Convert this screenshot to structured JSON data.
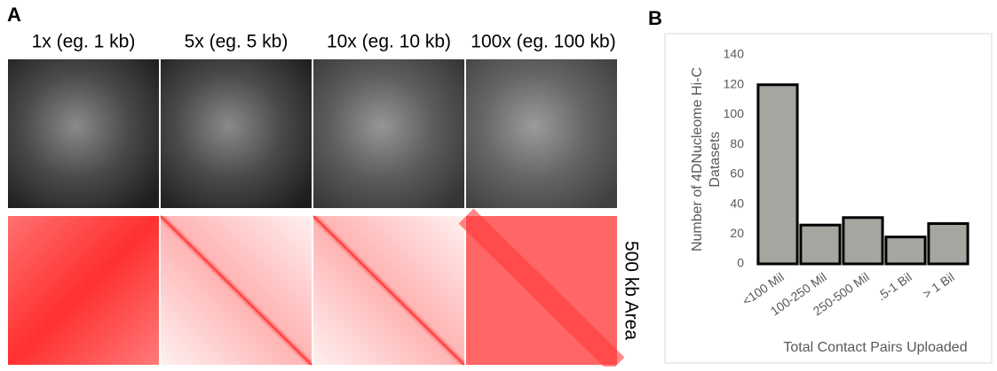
{
  "panel_a": {
    "label": "A",
    "columns": [
      "1x (eg. 1 kb)",
      "5x (eg. 5 kb)",
      "10x (eg. 10 kb)",
      "100x (eg. 100 kb)"
    ],
    "row_label": "500 kb Area"
  },
  "panel_b": {
    "label": "B"
  },
  "chart_data": {
    "type": "bar",
    "categories": [
      "<100 Mil",
      "100-250 Mil",
      "250-500 Mil",
      ".5-1 Bil",
      "> 1 Bil"
    ],
    "values": [
      120,
      26,
      31,
      18,
      27
    ],
    "color": "#a6a6a1",
    "y_label": [
      "Number of 4DNucleome Hi-C",
      "Datasets"
    ],
    "x_label": "Total Contact Pairs Uploaded",
    "ylim": [
      0,
      140
    ],
    "yticks": [
      0,
      20,
      40,
      60,
      80,
      100,
      120,
      140
    ],
    "grid": false
  }
}
